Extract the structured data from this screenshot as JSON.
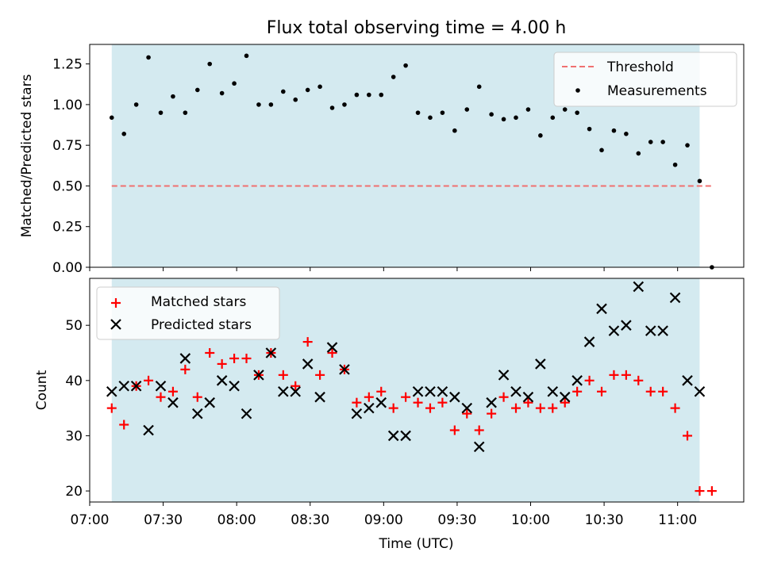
{
  "chart_data": [
    {
      "type": "scatter",
      "title": "Flux total observing time = 4.00 h",
      "xlabel": "",
      "ylabel": "Matched/Predicted stars",
      "ylim": [
        0,
        1.37
      ],
      "yticks": [
        0.0,
        0.25,
        0.5,
        0.75,
        1.0,
        1.25
      ],
      "ytick_labels": [
        "0.00",
        "0.25",
        "0.50",
        "0.75",
        "1.00",
        "1.25"
      ],
      "grid": false,
      "legend_position": "top-right",
      "legend": [
        "Threshold",
        "Measurements"
      ],
      "shaded_interval": {
        "start": "07:09",
        "end": "11:09",
        "color": "#d4eaf0"
      },
      "threshold": {
        "name": "Threshold",
        "value": 0.5,
        "x_start": "07:09",
        "x_end": "11:14",
        "color": "#f07070"
      },
      "series": [
        {
          "name": "Measurements",
          "color": "#000000",
          "x": [
            "07:09",
            "07:14",
            "07:19",
            "07:24",
            "07:29",
            "07:34",
            "07:39",
            "07:44",
            "07:49",
            "07:54",
            "07:59",
            "08:04",
            "08:09",
            "08:14",
            "08:19",
            "08:24",
            "08:29",
            "08:34",
            "08:39",
            "08:44",
            "08:49",
            "08:54",
            "08:59",
            "09:04",
            "09:09",
            "09:14",
            "09:19",
            "09:24",
            "09:29",
            "09:34",
            "09:39",
            "09:44",
            "09:49",
            "09:54",
            "09:59",
            "10:04",
            "10:09",
            "10:14",
            "10:19",
            "10:24",
            "10:29",
            "10:34",
            "10:39",
            "10:44",
            "10:49",
            "10:54",
            "10:59",
            "11:04",
            "11:09",
            "11:14"
          ],
          "values": [
            0.92,
            0.82,
            1.0,
            1.29,
            0.95,
            1.05,
            0.95,
            1.09,
            1.25,
            1.07,
            1.13,
            1.3,
            1.0,
            1.0,
            1.08,
            1.03,
            1.09,
            1.11,
            0.98,
            1.0,
            1.06,
            1.06,
            1.06,
            1.17,
            1.24,
            0.95,
            0.92,
            0.95,
            0.84,
            0.97,
            1.11,
            0.94,
            0.91,
            0.92,
            0.97,
            0.81,
            0.92,
            0.97,
            0.95,
            0.85,
            0.72,
            0.84,
            0.82,
            0.7,
            0.77,
            0.77,
            0.63,
            0.75,
            0.53,
            0.0
          ]
        }
      ]
    },
    {
      "type": "scatter",
      "title": "",
      "xlabel": "Time (UTC)",
      "ylabel": "Count",
      "xlim": [
        "07:00",
        "11:27"
      ],
      "xticks": [
        "07:00",
        "07:30",
        "08:00",
        "08:30",
        "09:00",
        "09:30",
        "10:00",
        "10:30",
        "11:00"
      ],
      "ylim": [
        18,
        58.5
      ],
      "yticks": [
        20,
        30,
        40,
        50
      ],
      "grid": false,
      "legend_position": "top-left",
      "legend": [
        "Matched stars",
        "Predicted stars"
      ],
      "shaded_interval": {
        "start": "07:09",
        "end": "11:09",
        "color": "#d4eaf0"
      },
      "series": [
        {
          "name": "Matched stars",
          "color": "#ff0000",
          "marker": "+",
          "x": [
            "07:09",
            "07:14",
            "07:19",
            "07:24",
            "07:29",
            "07:34",
            "07:39",
            "07:44",
            "07:49",
            "07:54",
            "07:59",
            "08:04",
            "08:09",
            "08:14",
            "08:19",
            "08:24",
            "08:29",
            "08:34",
            "08:39",
            "08:44",
            "08:49",
            "08:54",
            "08:59",
            "09:04",
            "09:09",
            "09:14",
            "09:19",
            "09:24",
            "09:29",
            "09:34",
            "09:39",
            "09:44",
            "09:49",
            "09:54",
            "09:59",
            "10:04",
            "10:09",
            "10:14",
            "10:19",
            "10:24",
            "10:29",
            "10:34",
            "10:39",
            "10:44",
            "10:49",
            "10:54",
            "10:59",
            "11:04",
            "11:09",
            "11:14"
          ],
          "values": [
            35,
            32,
            39,
            40,
            37,
            38,
            42,
            37,
            45,
            43,
            44,
            44,
            41,
            45,
            41,
            39,
            47,
            41,
            45,
            42,
            36,
            37,
            38,
            35,
            37,
            36,
            35,
            36,
            31,
            34,
            31,
            34,
            37,
            35,
            36,
            35,
            35,
            36,
            38,
            40,
            38,
            41,
            41,
            40,
            38,
            38,
            35,
            30,
            20,
            20
          ]
        },
        {
          "name": "Predicted stars",
          "color": "#000000",
          "marker": "x",
          "x": [
            "07:09",
            "07:14",
            "07:19",
            "07:24",
            "07:29",
            "07:34",
            "07:39",
            "07:44",
            "07:49",
            "07:54",
            "07:59",
            "08:04",
            "08:09",
            "08:14",
            "08:19",
            "08:24",
            "08:29",
            "08:34",
            "08:39",
            "08:44",
            "08:49",
            "08:54",
            "08:59",
            "09:04",
            "09:09",
            "09:14",
            "09:19",
            "09:24",
            "09:29",
            "09:34",
            "09:39",
            "09:44",
            "09:49",
            "09:54",
            "09:59",
            "10:04",
            "10:09",
            "10:14",
            "10:19",
            "10:24",
            "10:29",
            "10:34",
            "10:39",
            "10:44",
            "10:49",
            "10:54",
            "10:59",
            "11:04",
            "11:09"
          ],
          "values": [
            38,
            39,
            39,
            31,
            39,
            36,
            44,
            34,
            36,
            40,
            39,
            34,
            41,
            45,
            38,
            38,
            43,
            37,
            46,
            42,
            34,
            35,
            36,
            30,
            30,
            38,
            38,
            38,
            37,
            35,
            28,
            36,
            41,
            38,
            37,
            43,
            38,
            37,
            40,
            47,
            53,
            49,
            50,
            57,
            49,
            49,
            55,
            40,
            38
          ]
        }
      ]
    }
  ]
}
